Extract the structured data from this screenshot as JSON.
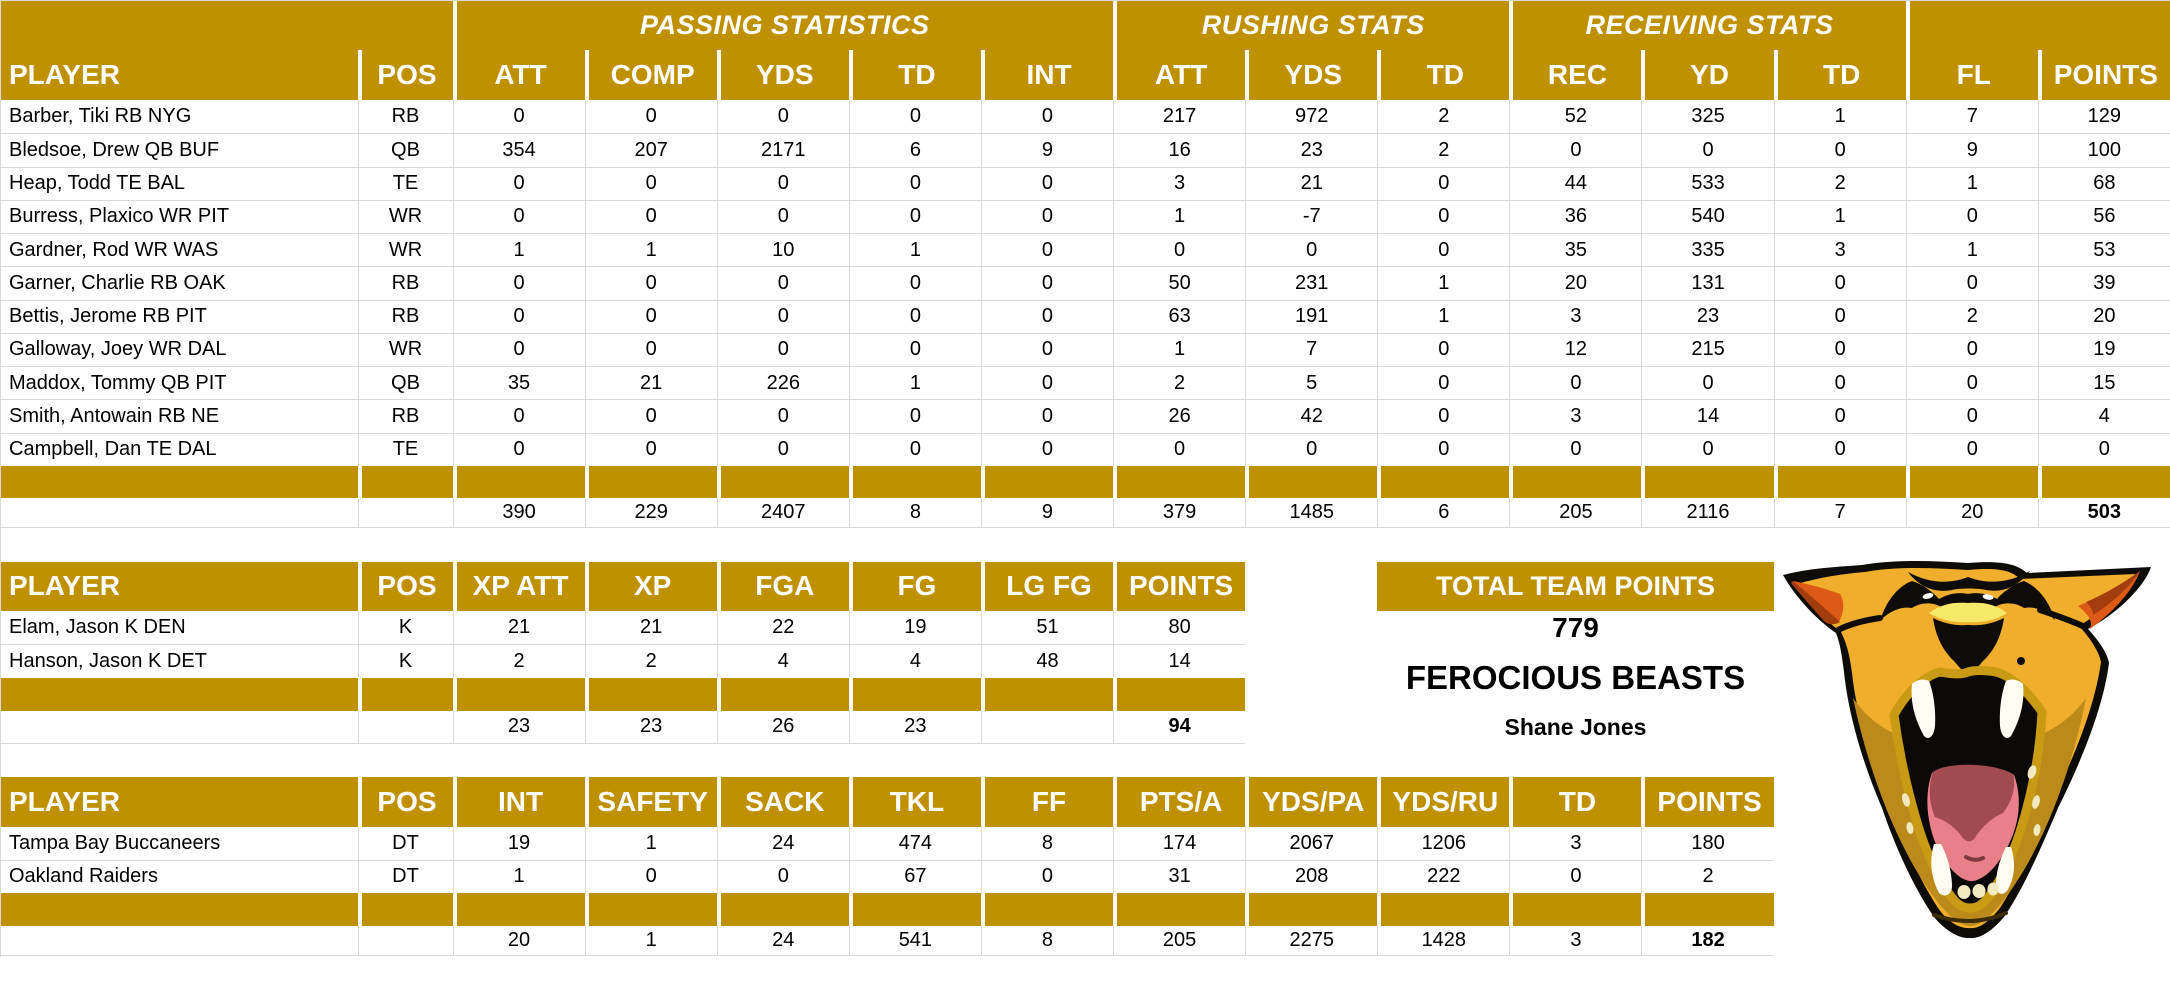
{
  "colors": {
    "gold": "#BF9000",
    "grid": "#D9D9D9",
    "header_text": "#FFFFFF",
    "text": "#000000",
    "logo_outline": "#0D0C08",
    "logo_fur": "#F0AE2C",
    "logo_fur_dark": "#BC8A1A",
    "logo_fur_lip": "#C99A14",
    "logo_nose_bridge": "#F6E96A",
    "logo_ear_inner": "#DD5A16",
    "logo_ear_inner_dark": "#A33D0E",
    "logo_mouth": "#0A0908",
    "logo_fang": "#FFFDF2",
    "logo_tooth": "#F1E9C0",
    "logo_tongue_pink": "#E87F89",
    "logo_tongue_dark": "#A14A50",
    "logo_eye": "#FFFFFF"
  },
  "tables": {
    "offense": {
      "group_headers": [
        {
          "label": "",
          "span": 2
        },
        {
          "label": "PASSING STATISTICS",
          "span": 5
        },
        {
          "label": "RUSHING STATS",
          "span": 3
        },
        {
          "label": "RECEIVING STATS",
          "span": 3
        },
        {
          "label": "",
          "span": 2
        }
      ],
      "columns": [
        "PLAYER",
        "POS",
        "ATT",
        "COMP",
        "YDS",
        "TD",
        "INT",
        "ATT",
        "YDS",
        "TD",
        "REC",
        "YD",
        "TD",
        "FL",
        "POINTS"
      ],
      "rows": [
        [
          "Barber, Tiki RB NYG",
          "RB",
          "0",
          "0",
          "0",
          "0",
          "0",
          "217",
          "972",
          "2",
          "52",
          "325",
          "1",
          "7",
          "129"
        ],
        [
          "Bledsoe, Drew QB BUF",
          "QB",
          "354",
          "207",
          "2171",
          "6",
          "9",
          "16",
          "23",
          "2",
          "0",
          "0",
          "0",
          "9",
          "100"
        ],
        [
          "Heap, Todd TE BAL",
          "TE",
          "0",
          "0",
          "0",
          "0",
          "0",
          "3",
          "21",
          "0",
          "44",
          "533",
          "2",
          "1",
          "68"
        ],
        [
          "Burress, Plaxico WR PIT",
          "WR",
          "0",
          "0",
          "0",
          "0",
          "0",
          "1",
          "-7",
          "0",
          "36",
          "540",
          "1",
          "0",
          "56"
        ],
        [
          "Gardner, Rod WR WAS",
          "WR",
          "1",
          "1",
          "10",
          "1",
          "0",
          "0",
          "0",
          "0",
          "35",
          "335",
          "3",
          "1",
          "53"
        ],
        [
          "Garner, Charlie RB OAK",
          "RB",
          "0",
          "0",
          "0",
          "0",
          "0",
          "50",
          "231",
          "1",
          "20",
          "131",
          "0",
          "0",
          "39"
        ],
        [
          "Bettis, Jerome RB PIT",
          "RB",
          "0",
          "0",
          "0",
          "0",
          "0",
          "63",
          "191",
          "1",
          "3",
          "23",
          "0",
          "2",
          "20"
        ],
        [
          "Galloway, Joey WR DAL",
          "WR",
          "0",
          "0",
          "0",
          "0",
          "0",
          "1",
          "7",
          "0",
          "12",
          "215",
          "0",
          "0",
          "19"
        ],
        [
          "Maddox, Tommy QB PIT",
          "QB",
          "35",
          "21",
          "226",
          "1",
          "0",
          "2",
          "5",
          "0",
          "0",
          "0",
          "0",
          "0",
          "15"
        ],
        [
          "Smith, Antowain RB NE",
          "RB",
          "0",
          "0",
          "0",
          "0",
          "0",
          "26",
          "42",
          "0",
          "3",
          "14",
          "0",
          "0",
          "4"
        ],
        [
          "Campbell, Dan TE DAL",
          "TE",
          "0",
          "0",
          "0",
          "0",
          "0",
          "0",
          "0",
          "0",
          "0",
          "0",
          "0",
          "0",
          "0"
        ]
      ],
      "totals": [
        "",
        "",
        "390",
        "229",
        "2407",
        "8",
        "9",
        "379",
        "1485",
        "6",
        "205",
        "2116",
        "7",
        "20",
        "503"
      ]
    },
    "kicking": {
      "group_headers": [],
      "columns": [
        "PLAYER",
        "POS",
        "XP ATT",
        "XP",
        "FGA",
        "FG",
        "LG FG",
        "POINTS"
      ],
      "rows": [
        [
          "Elam, Jason K DEN",
          "K",
          "21",
          "21",
          "22",
          "19",
          "51",
          "80"
        ],
        [
          "Hanson, Jason K DET",
          "K",
          "2",
          "2",
          "4",
          "4",
          "48",
          "14"
        ]
      ],
      "totals": [
        "",
        "",
        "23",
        "23",
        "26",
        "23",
        "",
        "94"
      ]
    },
    "defense": {
      "group_headers": [],
      "columns": [
        "PLAYER",
        "POS",
        "INT",
        "SAFETY",
        "SACK",
        "TKL",
        "FF",
        "PTS/A",
        "YDS/PA",
        "YDS/RU",
        "TD",
        "POINTS"
      ],
      "rows": [
        [
          "Tampa Bay Buccaneers",
          "DT",
          "19",
          "1",
          "24",
          "474",
          "8",
          "174",
          "2067",
          "1206",
          "3",
          "180"
        ],
        [
          "Oakland Raiders",
          "DT",
          "1",
          "0",
          "0",
          "67",
          "0",
          "31",
          "208",
          "222",
          "0",
          "2"
        ]
      ],
      "totals": [
        "",
        "",
        "20",
        "1",
        "24",
        "541",
        "8",
        "205",
        "2275",
        "1428",
        "3",
        "182"
      ]
    }
  },
  "team_summary": {
    "banner": "TOTAL TEAM POINTS",
    "total_points": "779",
    "team_name": "FEROCIOUS BEASTS",
    "owner": "Shane Jones",
    "logo": "roaring-wildcat-head"
  }
}
